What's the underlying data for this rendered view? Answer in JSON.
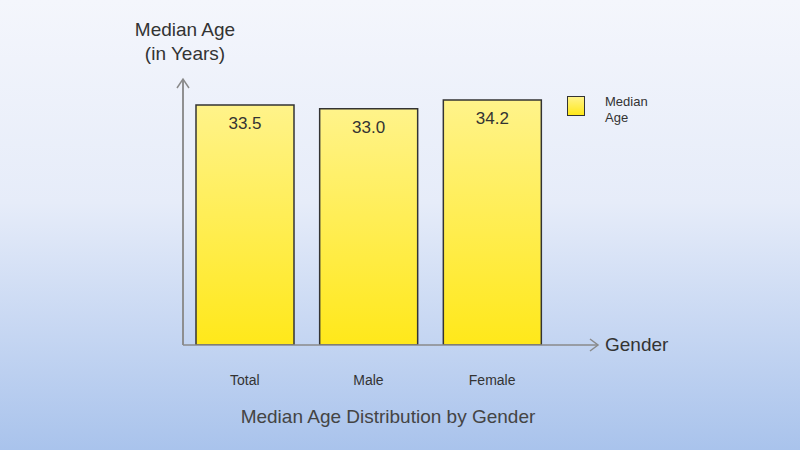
{
  "chart_data": {
    "type": "bar",
    "title": "Median Age Distribution by Gender",
    "x_label": "Gender",
    "y_label": "Median Age\n(in Years)",
    "categories": [
      "Total",
      "Male",
      "Female"
    ],
    "series": [
      {
        "name": "Median Age",
        "color": "#ffe81a",
        "values": [
          33.5,
          33,
          34.2
        ],
        "value_labels": [
          "33.5",
          "33.0",
          "34.2"
        ]
      }
    ],
    "ylim": [
      0,
      37
    ],
    "data_labels": true,
    "tick_labels": "x",
    "legend": "right",
    "grid": false
  }
}
